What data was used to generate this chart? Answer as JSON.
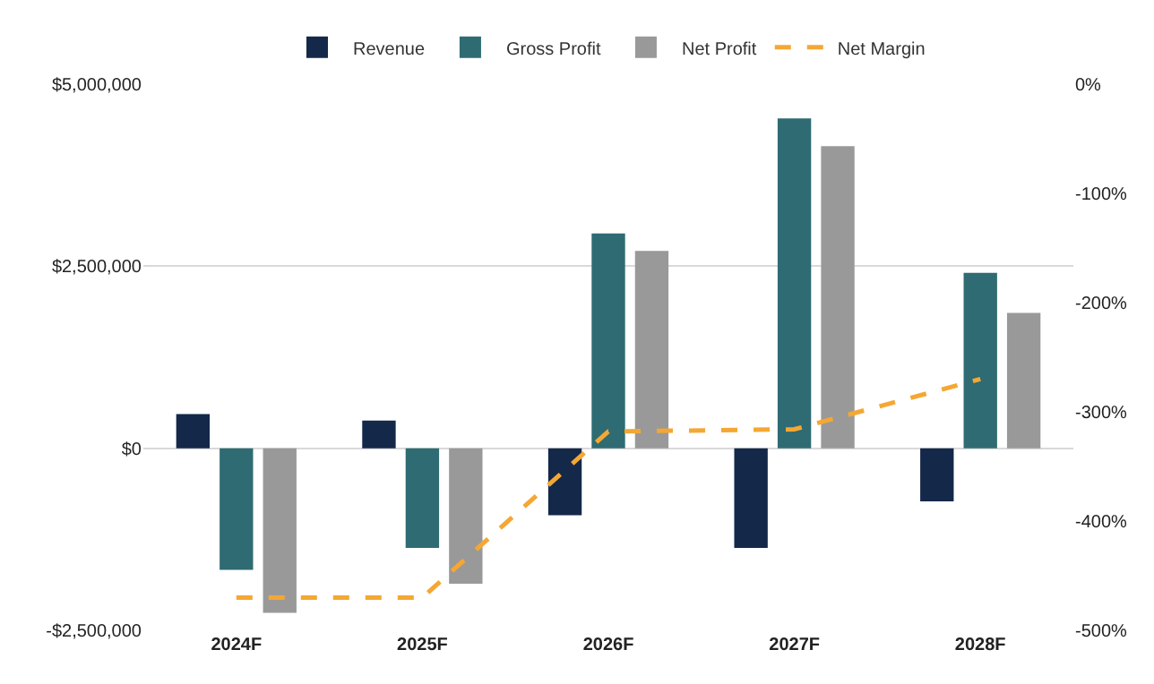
{
  "chart_data": {
    "type": "bar",
    "categories": [
      "2024F",
      "2025F",
      "2026F",
      "2027F",
      "2028F"
    ],
    "series": [
      {
        "name": "Revenue",
        "color": "#14284a",
        "values": [
          470000,
          380000,
          -920000,
          -1370000,
          -730000
        ]
      },
      {
        "name": "Gross Profit",
        "color": "#2f6b72",
        "values": [
          -1670000,
          -1370000,
          2950000,
          4530000,
          2410000
        ]
      },
      {
        "name": "Net Profit",
        "color": "#999999",
        "values": [
          -2260000,
          -1860000,
          2710000,
          4150000,
          1860000
        ]
      },
      {
        "name": "Net Margin",
        "type": "line",
        "axis": "y2",
        "color": "#f5a733",
        "line_style": "dashed",
        "marker": "none",
        "values": [
          -470,
          -470,
          -318,
          -316,
          -270
        ]
      }
    ],
    "ylim": [
      -2500000,
      5000000
    ],
    "yticks": [
      {
        "value": -2500000,
        "label": "-$2,500,000"
      },
      {
        "value": 0,
        "label": "$0"
      },
      {
        "value": 2500000,
        "label": "$2,500,000"
      },
      {
        "value": 5000000,
        "label": "$5,000,000"
      }
    ],
    "y2lim": [
      -500,
      0
    ],
    "y2ticks": [
      {
        "value": -500,
        "label": "-500%"
      },
      {
        "value": -400,
        "label": "-400%"
      },
      {
        "value": -300,
        "label": "-300%"
      },
      {
        "value": -200,
        "label": "-200%"
      },
      {
        "value": -100,
        "label": "-100%"
      },
      {
        "value": 0,
        "label": "0%"
      }
    ],
    "grid": "y",
    "legend": "top"
  }
}
